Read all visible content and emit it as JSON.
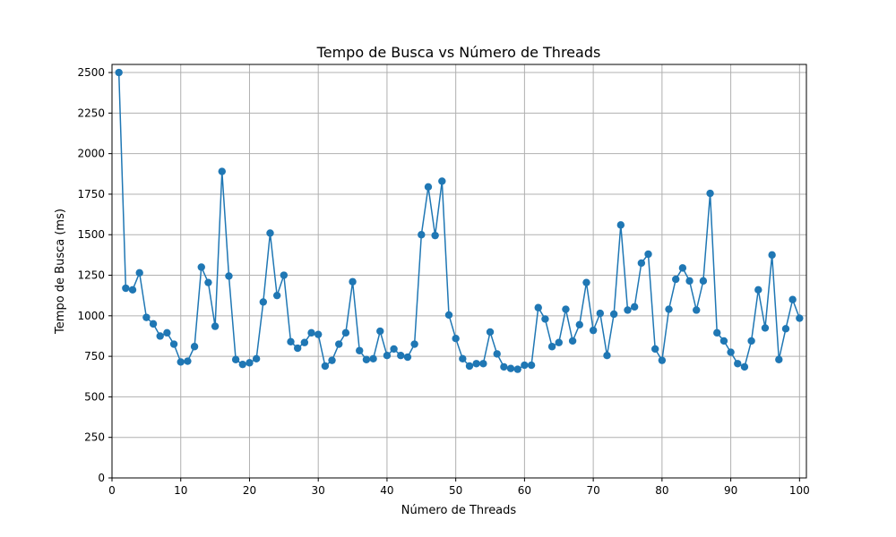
{
  "chart_data": {
    "type": "line",
    "title": "Tempo de Busca vs Número de Threads",
    "xlabel": "Número de Threads",
    "ylabel": "Tempo de Busca (ms)",
    "xlim": [
      0,
      101
    ],
    "ylim": [
      0,
      2550
    ],
    "x_ticks": [
      "0",
      "10",
      "20",
      "30",
      "40",
      "50",
      "60",
      "70",
      "80",
      "90",
      "100"
    ],
    "y_ticks": [
      "0",
      "250",
      "500",
      "750",
      "1000",
      "1250",
      "1500",
      "1750",
      "2000",
      "2250",
      "2500"
    ],
    "grid": true,
    "marker": "circle",
    "series_color": "#1f77b4",
    "grid_color": "#b0b0b0",
    "series": [
      {
        "x": [
          1,
          2,
          3,
          4,
          5,
          6,
          7,
          8,
          9,
          10,
          11,
          12,
          13,
          14,
          15,
          16,
          17,
          18,
          19,
          20,
          21,
          22,
          23,
          24,
          25,
          26,
          27,
          28,
          29,
          30,
          31,
          32,
          33,
          34,
          35,
          36,
          37,
          38,
          39,
          40,
          41,
          42,
          43,
          44,
          45,
          46,
          47,
          48,
          49,
          50,
          51,
          52,
          53,
          54,
          55,
          56,
          57,
          58,
          59,
          60,
          61,
          62,
          63,
          64,
          65,
          66,
          67,
          68,
          69,
          70,
          71,
          72,
          73,
          74,
          75,
          76,
          77,
          78,
          79,
          80,
          81,
          82,
          83,
          84,
          85,
          86,
          87,
          88,
          89,
          90,
          91,
          92,
          93,
          94,
          95,
          96,
          97,
          98,
          99,
          100
        ],
        "y": [
          2500,
          1170,
          1160,
          1265,
          990,
          950,
          875,
          895,
          825,
          715,
          720,
          810,
          1300,
          1205,
          935,
          1890,
          1245,
          730,
          700,
          710,
          735,
          1085,
          1510,
          1125,
          1250,
          840,
          800,
          835,
          895,
          885,
          690,
          725,
          825,
          895,
          1210,
          785,
          730,
          735,
          905,
          755,
          795,
          755,
          745,
          825,
          1500,
          1795,
          1495,
          1830,
          1005,
          860,
          735,
          690,
          705,
          705,
          900,
          765,
          685,
          675,
          670,
          695,
          695,
          1050,
          980,
          810,
          835,
          1040,
          845,
          945,
          1205,
          910,
          1015,
          755,
          1010,
          1560,
          1035,
          1055,
          1325,
          1380,
          795,
          725,
          1040,
          1225,
          1295,
          1215,
          1035,
          1215,
          1755,
          895,
          845,
          775,
          705,
          685,
          845,
          1160,
          925,
          1375,
          730,
          920,
          1100,
          985
        ]
      }
    ]
  }
}
